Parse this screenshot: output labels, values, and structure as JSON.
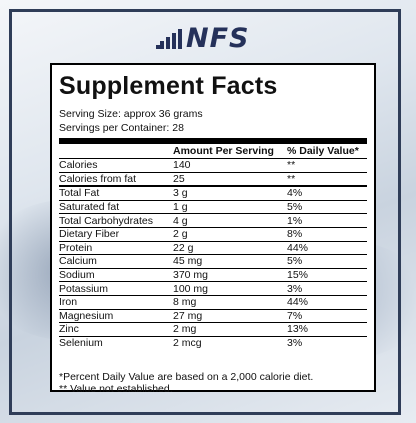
{
  "brand": {
    "logo_text": "NFS",
    "logo_icon": "arrow-dots-icon"
  },
  "panel": {
    "title": "Supplement Facts",
    "serving_size": "Serving Size: approx 36 grams",
    "servings_per_container": "Servings per Container: 28",
    "headers": {
      "amount": "Amount Per Serving",
      "dv": "% Daily Value*"
    },
    "rows": [
      {
        "name": "Calories",
        "amount": "140",
        "dv": "**"
      },
      {
        "name": "Calories from fat",
        "amount": "25",
        "dv": "**"
      },
      {
        "name": "Total Fat",
        "amount": "3 g",
        "dv": "4%"
      },
      {
        "name": "Saturated fat",
        "amount": "1 g",
        "dv": "5%"
      },
      {
        "name": "Total Carbohydrates",
        "amount": "4 g",
        "dv": "1%"
      },
      {
        "name": "Dietary Fiber",
        "amount": "2 g",
        "dv": "8%"
      },
      {
        "name": "Protein",
        "amount": "22 g",
        "dv": "44%"
      },
      {
        "name": "Calcium",
        "amount": "45 mg",
        "dv": "5%"
      },
      {
        "name": "Sodium",
        "amount": "370 mg",
        "dv": "15%"
      },
      {
        "name": "Potassium",
        "amount": "100 mg",
        "dv": "3%"
      },
      {
        "name": "Iron",
        "amount": "8 mg",
        "dv": "44%"
      },
      {
        "name": "Magnesium",
        "amount": "27 mg",
        "dv": "7%"
      },
      {
        "name": "Zinc",
        "amount": "2 mg",
        "dv": "13%"
      },
      {
        "name": "Selenium",
        "amount": "2 mcg",
        "dv": "3%"
      }
    ],
    "footnote_1": "*Percent Daily Value are based on a 2,000 calorie diet.",
    "footnote_2": "** Value not established."
  },
  "colors": {
    "frame": "#2f3d58",
    "logo": "#25315a"
  }
}
